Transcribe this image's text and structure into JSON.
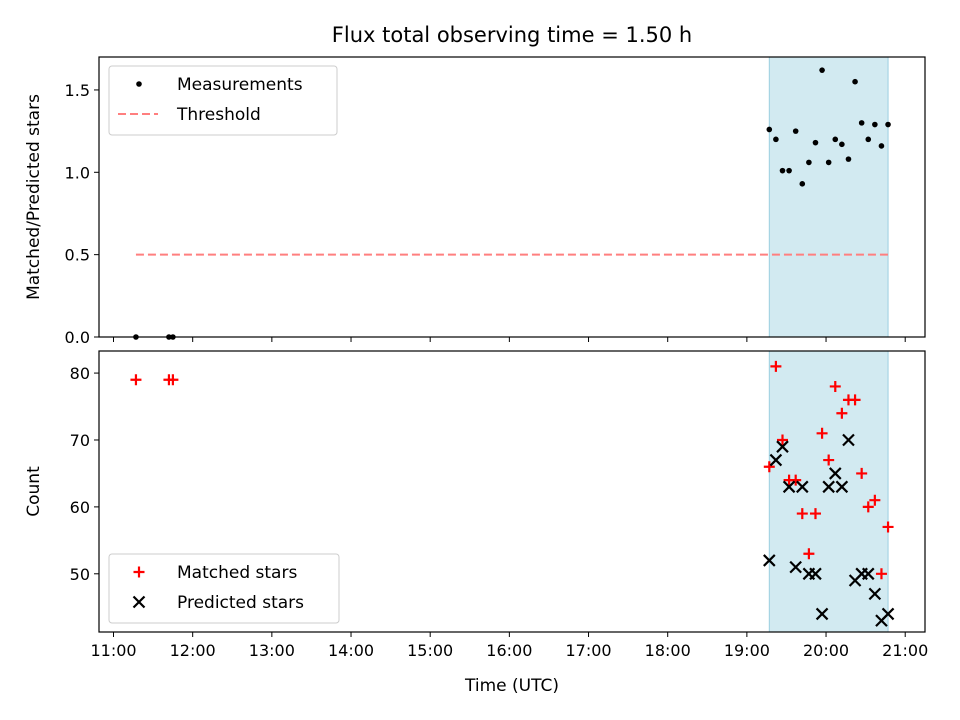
{
  "chart_data": [
    {
      "type": "scatter",
      "title": "Flux total observing time = 1.50 h",
      "ylabel": "Matched/Predicted stars",
      "xlim": [
        "10:49",
        "21:15"
      ],
      "ylim": [
        0,
        1.7
      ],
      "yticks": [
        "0.0",
        "0.5",
        "1.0",
        "1.5"
      ],
      "shaded_region": {
        "from": "19:17",
        "to": "20:47",
        "color": "#add8e6"
      },
      "legend": {
        "placement": "upper-left",
        "entries": [
          "Measurements",
          "Threshold"
        ]
      },
      "threshold": {
        "name": "Threshold",
        "y": 0.5,
        "from": "11:17",
        "to": "20:47",
        "color": "#ff7f7f"
      },
      "series": [
        {
          "name": "Measurements",
          "color": "#000000",
          "marker": "dot",
          "x": [
            "11:17",
            "11:42",
            "11:45",
            "19:17",
            "19:22",
            "19:27",
            "19:32",
            "19:37",
            "19:42",
            "19:47",
            "19:52",
            "19:57",
            "20:02",
            "20:07",
            "20:12",
            "20:17",
            "20:22",
            "20:27",
            "20:32",
            "20:37",
            "20:42",
            "20:47"
          ],
          "y": [
            0.0,
            0.0,
            0.0,
            1.26,
            1.2,
            1.01,
            1.01,
            1.25,
            0.93,
            1.06,
            1.18,
            1.62,
            1.06,
            1.2,
            1.17,
            1.08,
            1.55,
            1.3,
            1.2,
            1.29,
            1.16,
            1.29
          ]
        }
      ]
    },
    {
      "type": "scatter",
      "xlabel": "Time (UTC)",
      "ylabel": "Count",
      "xlim": [
        "10:49",
        "21:15"
      ],
      "ylim": [
        41.3,
        83.3
      ],
      "yticks": [
        "50",
        "60",
        "70",
        "80"
      ],
      "xticks": [
        "11:00",
        "12:00",
        "13:00",
        "14:00",
        "15:00",
        "16:00",
        "17:00",
        "18:00",
        "19:00",
        "20:00",
        "21:00"
      ],
      "shaded_region": {
        "from": "19:17",
        "to": "20:47",
        "color": "#add8e6"
      },
      "legend": {
        "placement": "lower-left",
        "entries": [
          "Matched stars",
          "Predicted stars"
        ]
      },
      "series": [
        {
          "name": "Matched stars",
          "color": "#ff0000",
          "marker": "plus",
          "x": [
            "11:17",
            "11:42",
            "11:45",
            "19:17",
            "19:22",
            "19:27",
            "19:32",
            "19:37",
            "19:42",
            "19:47",
            "19:52",
            "19:57",
            "20:02",
            "20:07",
            "20:12",
            "20:17",
            "20:22",
            "20:27",
            "20:32",
            "20:37",
            "20:42",
            "20:47"
          ],
          "y": [
            79,
            79,
            79,
            66,
            81,
            70,
            64,
            64,
            59,
            53,
            59,
            71,
            67,
            78,
            74,
            76,
            76,
            65,
            60,
            61,
            50,
            57
          ]
        },
        {
          "name": "Predicted stars",
          "color": "#000000",
          "marker": "x",
          "x": [
            "19:17",
            "19:22",
            "19:27",
            "19:32",
            "19:37",
            "19:42",
            "19:47",
            "19:52",
            "19:57",
            "20:02",
            "20:07",
            "20:12",
            "20:17",
            "20:22",
            "20:27",
            "20:32",
            "20:37",
            "20:42",
            "20:47"
          ],
          "y": [
            52,
            67,
            69,
            63,
            51,
            63,
            50,
            50,
            44,
            63,
            65,
            63,
            70,
            49,
            50,
            50,
            47,
            43,
            44
          ]
        }
      ]
    }
  ]
}
